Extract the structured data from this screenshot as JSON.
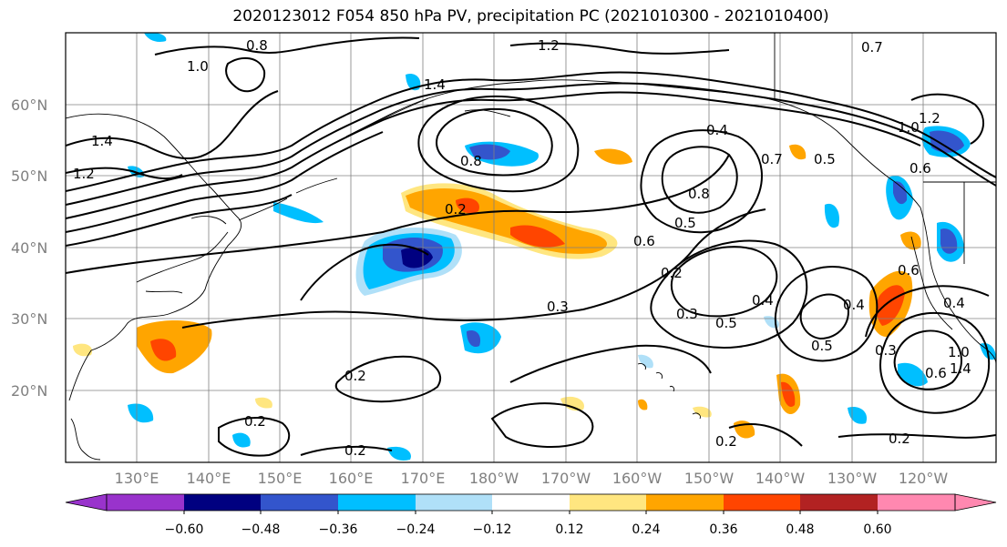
{
  "title": "2020123012 F054 850 hPa PV, precipitation PC (2021010300 - 2021010400)",
  "latitude_labels": [
    "60°N",
    "50°N",
    "40°N",
    "30°N",
    "20°N"
  ],
  "longitude_labels": [
    "130°E",
    "140°E",
    "150°E",
    "160°E",
    "170°E",
    "180°W",
    "170°W",
    "160°W",
    "150°W",
    "140°W",
    "130°W",
    "120°W"
  ],
  "colorbar": {
    "colors": [
      "#9933cc",
      "#000080",
      "#3355cc",
      "#00bfff",
      "#b0e0f8",
      "#ffffff",
      "#ffe680",
      "#ffa500",
      "#ff4500",
      "#b22222",
      "#ff88b0"
    ],
    "tick_labels": [
      "−0.60",
      "−0.48",
      "−0.36",
      "−0.24",
      "−0.12",
      "0.12",
      "0.24",
      "0.36",
      "0.48",
      "0.60"
    ]
  },
  "contour_labels": [
    "1.2",
    "0.7",
    "0.8",
    "1.0",
    "1.4",
    "1.4",
    "1.2",
    "0.2",
    "0.8",
    "1.0",
    "0.7",
    "0.4",
    "0.8",
    "0.5",
    "0.6",
    "0.5",
    "0.2",
    "0.3",
    "0.4",
    "0.5",
    "0.3",
    "0.6",
    "0.4",
    "0.3",
    "0.5",
    "0.4",
    "1.0",
    "0.6",
    "1.4",
    "0.2",
    "0.2",
    "0.2",
    "0.2",
    "0.2",
    "0.6",
    "1.2"
  ]
}
